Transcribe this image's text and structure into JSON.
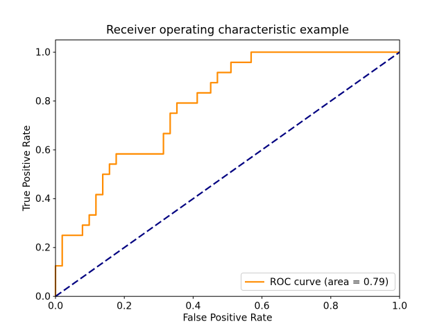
{
  "colors": {
    "background": "#ffffff",
    "text": "#000000",
    "spine": "#000000",
    "roc_curve": "#ff8c00",
    "chance_line": "#000080",
    "legend_border": "#cccccc",
    "legend_fill": "#ffffff"
  },
  "chart_data": {
    "type": "line",
    "title": "Receiver operating characteristic example",
    "xlabel": "False Positive Rate",
    "ylabel": "True Positive Rate",
    "xlim": [
      0.0,
      1.0
    ],
    "ylim": [
      0.0,
      1.05
    ],
    "xticks": [
      "0.0",
      "0.2",
      "0.4",
      "0.6",
      "0.8",
      "1.0"
    ],
    "yticks": [
      "0.0",
      "0.2",
      "0.4",
      "0.6",
      "0.8",
      "1.0"
    ],
    "grid": false,
    "auc": 0.79,
    "legend": {
      "position": "lower right",
      "entries": [
        {
          "label": "ROC curve (area = 0.79)",
          "color": "#ff8c00",
          "style": "solid"
        }
      ]
    },
    "series": [
      {
        "name": "roc-curve",
        "label": "ROC curve (area = 0.79)",
        "color": "#ff8c00",
        "style": "solid",
        "linewidth": 2,
        "x": [
          0.0,
          0.0,
          0.0196,
          0.0196,
          0.0784,
          0.0784,
          0.098,
          0.098,
          0.1176,
          0.1176,
          0.1373,
          0.1373,
          0.1569,
          0.1569,
          0.1765,
          0.1765,
          0.3137,
          0.3137,
          0.3333,
          0.3333,
          0.3529,
          0.3529,
          0.4118,
          0.4118,
          0.451,
          0.451,
          0.4706,
          0.4706,
          0.5098,
          0.5098,
          0.5686,
          0.5686,
          1.0
        ],
        "y": [
          0.0,
          0.125,
          0.125,
          0.25,
          0.25,
          0.2917,
          0.2917,
          0.3333,
          0.3333,
          0.4167,
          0.4167,
          0.5,
          0.5,
          0.5417,
          0.5417,
          0.5833,
          0.5833,
          0.6667,
          0.6667,
          0.75,
          0.75,
          0.7917,
          0.7917,
          0.8333,
          0.8333,
          0.875,
          0.875,
          0.9167,
          0.9167,
          0.9583,
          0.9583,
          1.0,
          1.0
        ]
      },
      {
        "name": "chance-diagonal",
        "label": "",
        "color": "#000080",
        "style": "dashed",
        "linewidth": 2,
        "x": [
          0.0,
          1.0
        ],
        "y": [
          0.0,
          1.0
        ]
      }
    ]
  }
}
